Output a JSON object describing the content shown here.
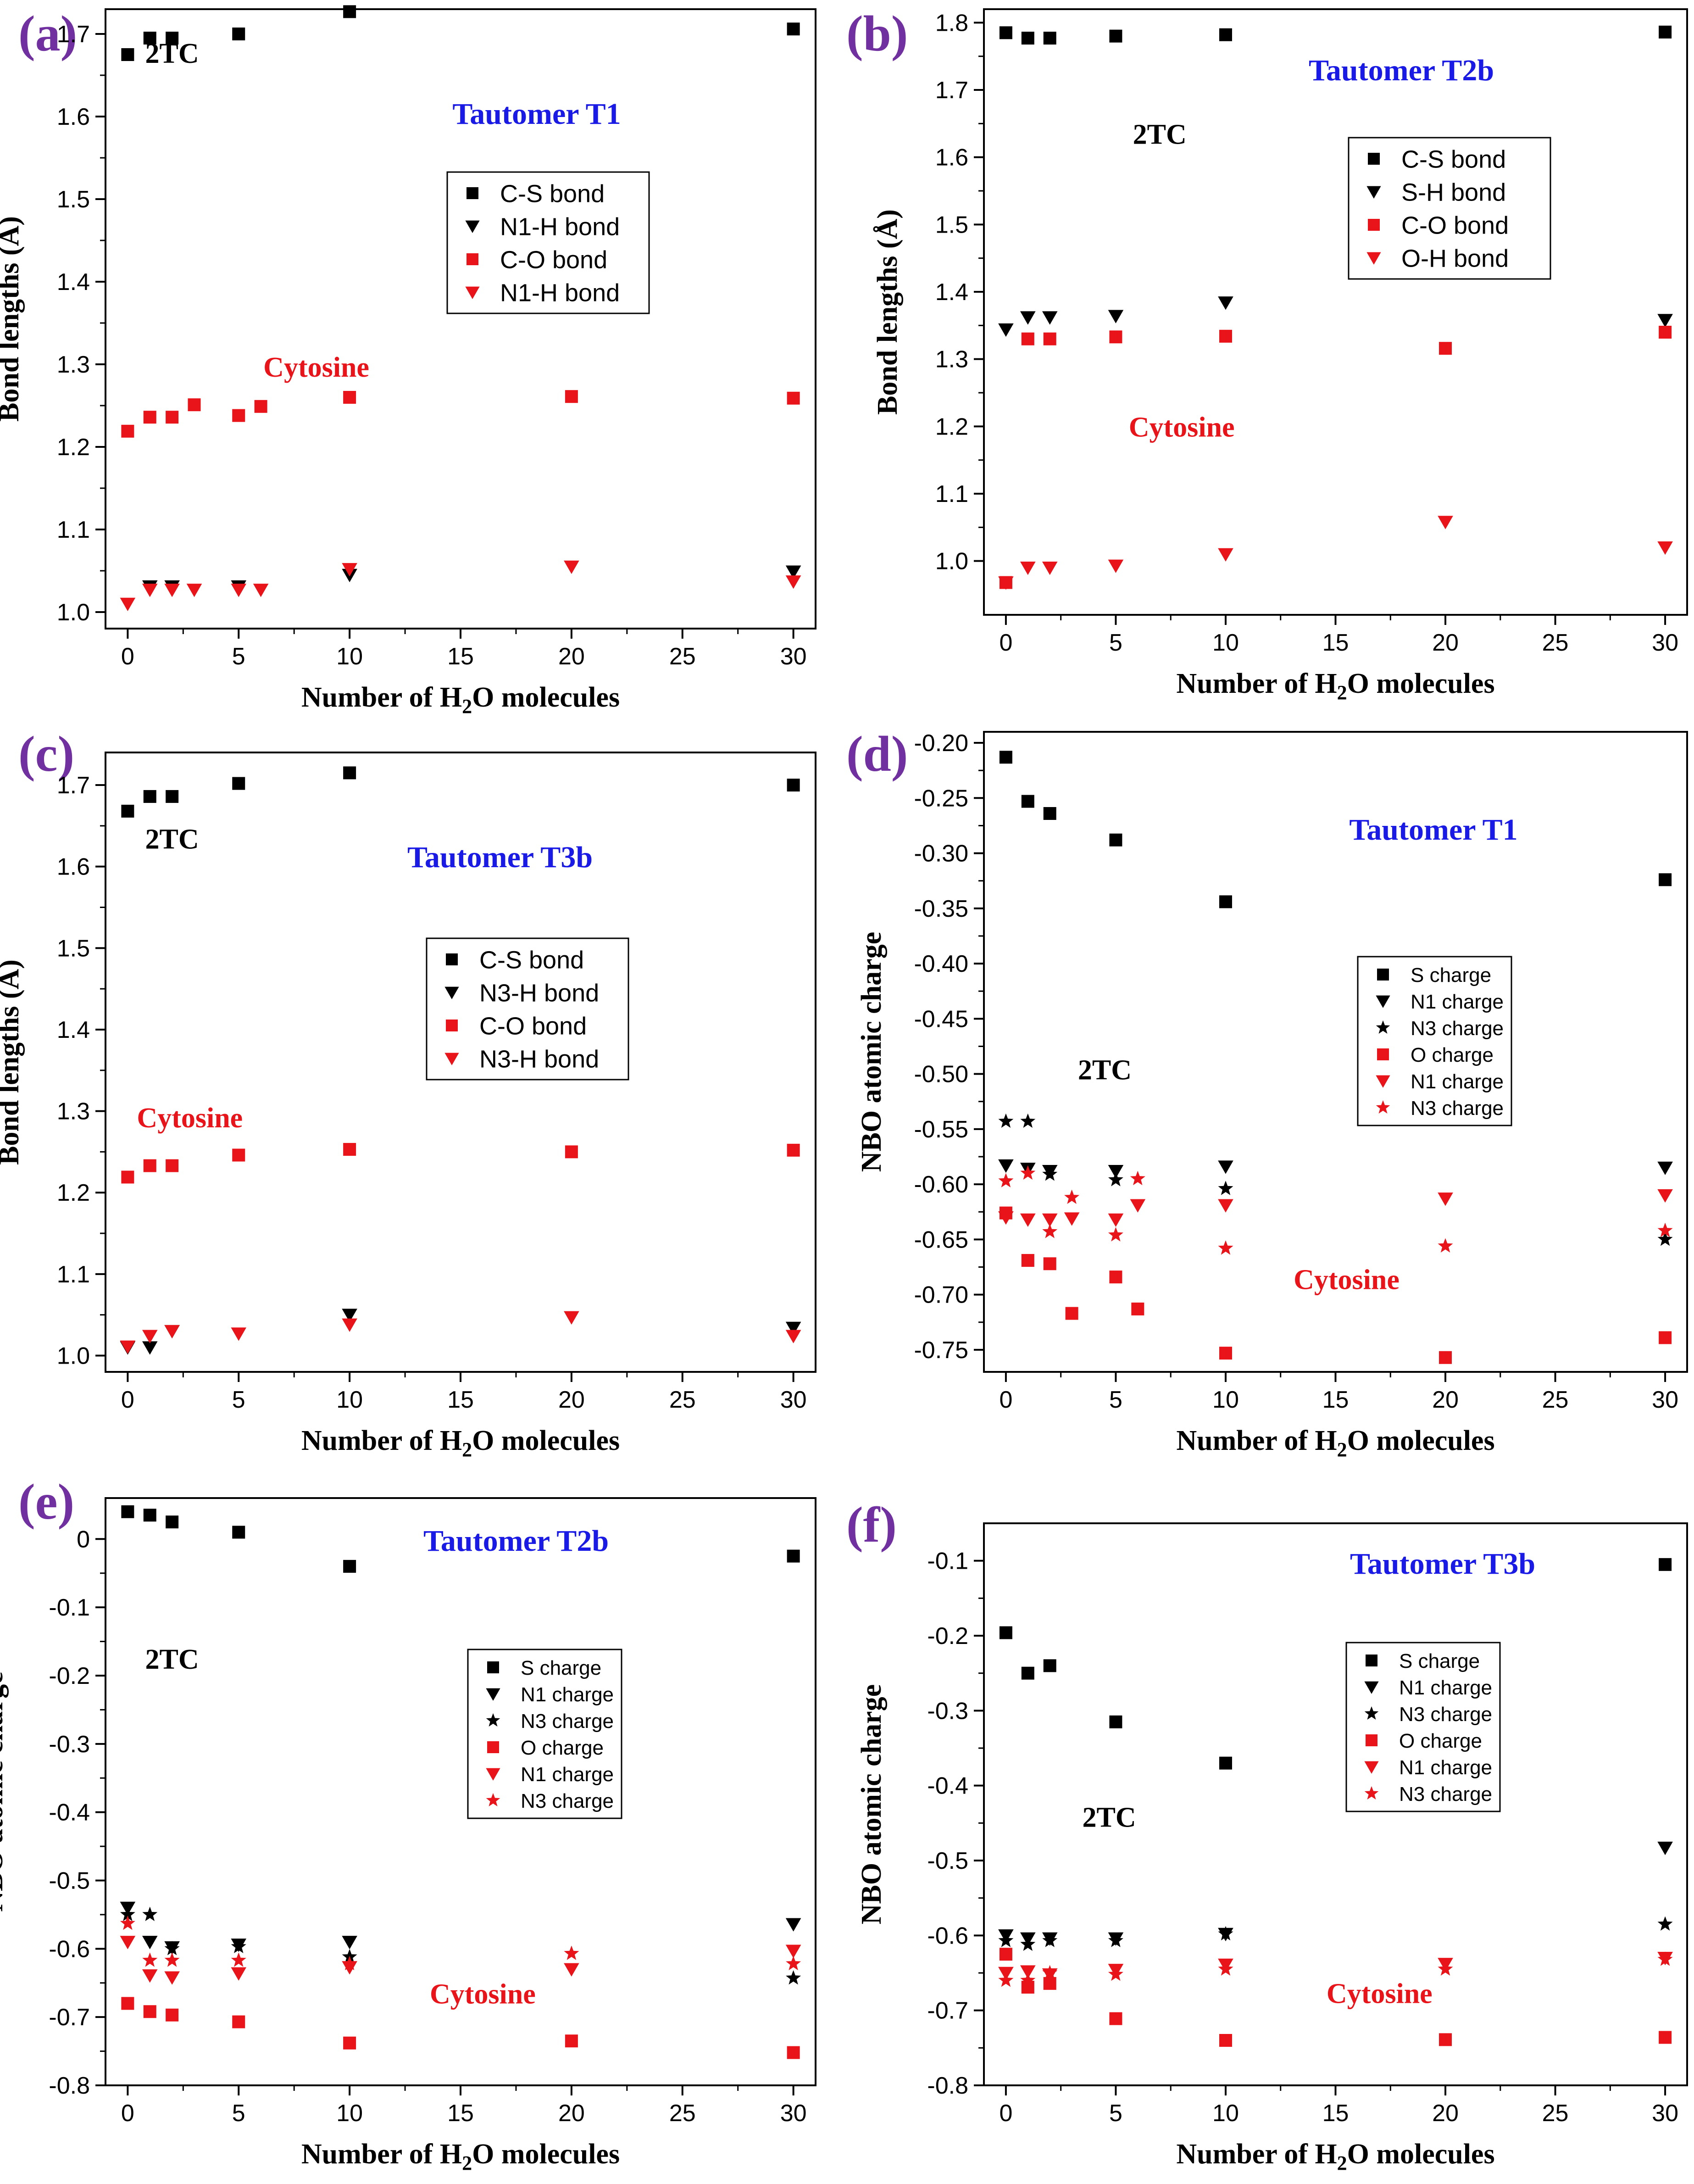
{
  "figure": {
    "panels": [
      "(a)",
      "(b)",
      "(c)",
      "(d)",
      "(e)",
      "(f)"
    ]
  },
  "colors": {
    "black": "#000000",
    "red": "#e8141a",
    "blue": "#1a1ae6",
    "purple": "#7030a0"
  },
  "chart_data": [
    {
      "type": "scatter",
      "panel_label": "(a)",
      "title": "Tautomer T1",
      "xlabel": "Number of H₂O molecules",
      "ylabel": "Bond lengths (Å)",
      "xlim": [
        -1,
        31
      ],
      "ylim": [
        0.98,
        1.73
      ],
      "xticks": [
        0,
        5,
        10,
        15,
        20,
        25,
        30
      ],
      "yticks": [
        1.0,
        1.1,
        1.2,
        1.3,
        1.4,
        1.5,
        1.6,
        1.7
      ],
      "annotations": [
        {
          "text": "2TC",
          "color": "black",
          "at": [
            2.0,
            1.665
          ]
        },
        {
          "text": "Cytosine",
          "color": "red",
          "at": [
            8.5,
            1.285
          ]
        }
      ],
      "legend_position": "center-right",
      "series": [
        {
          "name": "C-S bond",
          "marker": "square",
          "color": "black",
          "x": [
            0,
            1,
            2,
            5,
            10,
            30
          ],
          "y": [
            1.675,
            1.695,
            1.695,
            1.7,
            1.727,
            1.706
          ]
        },
        {
          "name": "N1-H bond",
          "marker": "triangle-down",
          "color": "black",
          "x": [
            1,
            2,
            5,
            10,
            30
          ],
          "y": [
            1.031,
            1.031,
            1.031,
            1.045,
            1.049
          ]
        },
        {
          "name": "C-O bond",
          "marker": "square",
          "color": "red",
          "x": [
            0,
            1,
            2,
            3,
            5,
            6,
            10,
            20,
            30
          ],
          "y": [
            1.219,
            1.236,
            1.236,
            1.251,
            1.238,
            1.249,
            1.26,
            1.261,
            1.259
          ]
        },
        {
          "name": "N1-H bond",
          "marker": "triangle-down",
          "color": "red",
          "x": [
            0,
            1,
            2,
            3,
            5,
            6,
            10,
            20,
            30
          ],
          "y": [
            1.01,
            1.027,
            1.027,
            1.027,
            1.027,
            1.027,
            1.052,
            1.055,
            1.037
          ]
        }
      ]
    },
    {
      "type": "scatter",
      "panel_label": "(b)",
      "title": "Tautomer T2b",
      "xlabel": "Number of H₂O molecules",
      "ylabel": "Bond lengths (Å)",
      "xlim": [
        -1,
        31
      ],
      "ylim": [
        0.92,
        1.82
      ],
      "xticks": [
        0,
        5,
        10,
        15,
        20,
        25,
        30
      ],
      "yticks": [
        1.0,
        1.1,
        1.2,
        1.3,
        1.4,
        1.5,
        1.6,
        1.7,
        1.8
      ],
      "annotations": [
        {
          "text": "2TC",
          "color": "black",
          "at": [
            7.0,
            1.62
          ]
        },
        {
          "text": "Cytosine",
          "color": "red",
          "at": [
            8.0,
            1.185
          ]
        }
      ],
      "legend_position": "upper-right",
      "series": [
        {
          "name": "C-S bond",
          "marker": "square",
          "color": "black",
          "x": [
            0,
            1,
            2,
            5,
            10,
            30
          ],
          "y": [
            1.785,
            1.777,
            1.777,
            1.78,
            1.782,
            1.786
          ]
        },
        {
          "name": "S-H bond",
          "marker": "triangle-down",
          "color": "black",
          "x": [
            0,
            1,
            2,
            5,
            10,
            30
          ],
          "y": [
            1.344,
            1.362,
            1.362,
            1.364,
            1.384,
            1.358
          ]
        },
        {
          "name": "C-O bond",
          "marker": "square",
          "color": "red",
          "x": [
            0,
            1,
            2,
            5,
            10,
            20,
            30
          ],
          "y": [
            0.968,
            1.33,
            1.33,
            1.333,
            1.334,
            1.316,
            1.34
          ]
        },
        {
          "name": "O-H bond",
          "marker": "triangle-down",
          "color": "red",
          "x": [
            0,
            1,
            2,
            5,
            10,
            20,
            30
          ],
          "y": [
            0.968,
            0.99,
            0.99,
            0.993,
            1.01,
            1.058,
            1.02
          ]
        }
      ]
    },
    {
      "type": "scatter",
      "panel_label": "(c)",
      "title": "Tautomer T3b",
      "xlabel": "Number of H₂O molecules",
      "ylabel": "Bond lengths (Å)",
      "xlim": [
        -1,
        31
      ],
      "ylim": [
        0.98,
        1.74
      ],
      "xticks": [
        0,
        5,
        10,
        15,
        20,
        25,
        30
      ],
      "yticks": [
        1.0,
        1.1,
        1.2,
        1.3,
        1.4,
        1.5,
        1.6,
        1.7
      ],
      "annotations": [
        {
          "text": "2TC",
          "color": "black",
          "at": [
            2.0,
            1.622
          ]
        },
        {
          "text": "Cytosine",
          "color": "red",
          "at": [
            2.8,
            1.28
          ]
        }
      ],
      "legend_position": "center-right",
      "series": [
        {
          "name": "C-S bond",
          "marker": "square",
          "color": "black",
          "x": [
            0,
            1,
            2,
            5,
            10,
            30
          ],
          "y": [
            1.668,
            1.686,
            1.686,
            1.702,
            1.715,
            1.7
          ]
        },
        {
          "name": "N3-H bond",
          "marker": "triangle-down",
          "color": "black",
          "x": [
            0,
            1,
            2,
            10,
            30
          ],
          "y": [
            1.01,
            1.01,
            1.03,
            1.05,
            1.034
          ]
        },
        {
          "name": "C-O bond",
          "marker": "square",
          "color": "red",
          "x": [
            0,
            1,
            2,
            5,
            10,
            20,
            30
          ],
          "y": [
            1.219,
            1.233,
            1.233,
            1.246,
            1.253,
            1.25,
            1.252
          ]
        },
        {
          "name": "N3-H bond",
          "marker": "triangle-down",
          "color": "red",
          "x": [
            0,
            1,
            2,
            5,
            10,
            20,
            30
          ],
          "y": [
            1.011,
            1.024,
            1.03,
            1.027,
            1.038,
            1.047,
            1.024
          ]
        }
      ]
    },
    {
      "type": "scatter",
      "panel_label": "(d)",
      "title": "Tautomer T1",
      "xlabel": "Number of H₂O molecules",
      "ylabel": "NBO atomic charge",
      "xlim": [
        -1,
        31
      ],
      "ylim": [
        -0.77,
        -0.19
      ],
      "xticks": [
        0,
        5,
        10,
        15,
        20,
        25,
        30
      ],
      "yticks": [
        -0.2,
        -0.25,
        -0.3,
        -0.35,
        -0.4,
        -0.45,
        -0.5,
        -0.55,
        -0.6,
        -0.65,
        -0.7,
        -0.75
      ],
      "ytick_labels": [
        "-0.20",
        "-0.25",
        "-0.30",
        "-0.35",
        "-0.40",
        "-0.45",
        "-0.50",
        "-0.55",
        "-0.60",
        "-0.65",
        "-0.70",
        "-0.75"
      ],
      "annotations": [
        {
          "text": "2TC",
          "color": "black",
          "at": [
            4.5,
            -0.505
          ]
        },
        {
          "text": "Cytosine",
          "color": "red",
          "at": [
            15.5,
            -0.695
          ]
        }
      ],
      "legend_position": "center-right",
      "series": [
        {
          "name": "S charge",
          "marker": "square",
          "color": "black",
          "x": [
            0,
            1,
            2,
            5,
            10,
            30
          ],
          "y": [
            -0.213,
            -0.253,
            -0.264,
            -0.288,
            -0.344,
            -0.324
          ]
        },
        {
          "name": "N1 charge",
          "marker": "triangle-down",
          "color": "black",
          "x": [
            0,
            1,
            2,
            5,
            10,
            30
          ],
          "y": [
            -0.583,
            -0.586,
            -0.588,
            -0.588,
            -0.584,
            -0.585
          ]
        },
        {
          "name": "N3 charge",
          "marker": "star",
          "color": "black",
          "x": [
            0,
            1,
            2,
            5,
            10,
            30
          ],
          "y": [
            -0.543,
            -0.543,
            -0.591,
            -0.596,
            -0.604,
            -0.65
          ]
        },
        {
          "name": "O charge",
          "marker": "square",
          "color": "red",
          "x": [
            0,
            1,
            2,
            3,
            5,
            6,
            10,
            20,
            30
          ],
          "y": [
            -0.626,
            -0.669,
            -0.672,
            -0.717,
            -0.684,
            -0.713,
            -0.753,
            -0.757,
            -0.739
          ]
        },
        {
          "name": "N1 charge",
          "marker": "triangle-down",
          "color": "red",
          "x": [
            0,
            1,
            2,
            3,
            5,
            6,
            10,
            20,
            30
          ],
          "y": [
            -0.63,
            -0.632,
            -0.632,
            -0.631,
            -0.632,
            -0.619,
            -0.619,
            -0.613,
            -0.61
          ]
        },
        {
          "name": "N3 charge",
          "marker": "star",
          "color": "red",
          "x": [
            0,
            1,
            2,
            3,
            5,
            6,
            10,
            20,
            30
          ],
          "y": [
            -0.597,
            -0.59,
            -0.643,
            -0.612,
            -0.646,
            -0.595,
            -0.658,
            -0.656,
            -0.642
          ]
        }
      ]
    },
    {
      "type": "scatter",
      "panel_label": "(e)",
      "title": "Tautomer T2b",
      "xlabel": "Number of H₂O molecules",
      "ylabel": "NBO atomic charge",
      "xlim": [
        -1,
        31
      ],
      "ylim": [
        -0.8,
        0.06
      ],
      "xticks": [
        0,
        5,
        10,
        15,
        20,
        25,
        30
      ],
      "yticks": [
        0,
        -0.1,
        -0.2,
        -0.3,
        -0.4,
        -0.5,
        -0.6,
        -0.7,
        -0.8
      ],
      "ytick_labels": [
        "0",
        "-0.1",
        "-0.2",
        "-0.3",
        "-0.4",
        "-0.5",
        "-0.6",
        "-0.7",
        "-0.8"
      ],
      "annotations": [
        {
          "text": "2TC",
          "color": "black",
          "at": [
            2.0,
            -0.19
          ]
        },
        {
          "text": "Cytosine",
          "color": "red",
          "at": [
            16.0,
            -0.68
          ]
        }
      ],
      "legend_position": "center-right",
      "series": [
        {
          "name": "S charge",
          "marker": "square",
          "color": "black",
          "x": [
            0,
            1,
            2,
            5,
            10,
            30
          ],
          "y": [
            0.04,
            0.035,
            0.025,
            0.01,
            -0.04,
            -0.025
          ]
        },
        {
          "name": "N1 charge",
          "marker": "triangle-down",
          "color": "black",
          "x": [
            0,
            1,
            2,
            5,
            10,
            30
          ],
          "y": [
            -0.54,
            -0.59,
            -0.598,
            -0.594,
            -0.59,
            -0.564
          ]
        },
        {
          "name": "N3 charge",
          "marker": "star",
          "color": "black",
          "x": [
            0,
            1,
            2,
            5,
            10,
            30
          ],
          "y": [
            -0.55,
            -0.55,
            -0.6,
            -0.597,
            -0.612,
            -0.643
          ]
        },
        {
          "name": "O charge",
          "marker": "square",
          "color": "red",
          "x": [
            0,
            1,
            2,
            5,
            10,
            20,
            30
          ],
          "y": [
            -0.68,
            -0.692,
            -0.697,
            -0.707,
            -0.738,
            -0.735,
            -0.752
          ]
        },
        {
          "name": "N1 charge",
          "marker": "triangle-down",
          "color": "red",
          "x": [
            0,
            1,
            2,
            5,
            10,
            20,
            30
          ],
          "y": [
            -0.59,
            -0.639,
            -0.642,
            -0.636,
            -0.627,
            -0.63,
            -0.603
          ]
        },
        {
          "name": "N3 charge",
          "marker": "star",
          "color": "red",
          "x": [
            0,
            1,
            2,
            5,
            10,
            20,
            30
          ],
          "y": [
            -0.563,
            -0.617,
            -0.617,
            -0.617,
            -0.622,
            -0.607,
            -0.622
          ]
        }
      ]
    },
    {
      "type": "scatter",
      "panel_label": "(f)",
      "title": "Tautomer T3b",
      "xlabel": "Number of H₂O molecules",
      "ylabel": "NBO atomic charge",
      "xlim": [
        -1,
        31
      ],
      "ylim": [
        -0.8,
        -0.05
      ],
      "xticks": [
        0,
        5,
        10,
        15,
        20,
        25,
        30
      ],
      "yticks": [
        -0.1,
        -0.2,
        -0.3,
        -0.4,
        -0.5,
        -0.6,
        -0.7,
        -0.8
      ],
      "ytick_labels": [
        "-0.1",
        "-0.2",
        "-0.3",
        "-0.4",
        "-0.5",
        "-0.6",
        "-0.7",
        "-0.8"
      ],
      "annotations": [
        {
          "text": "2TC",
          "color": "black",
          "at": [
            4.7,
            -0.455
          ]
        },
        {
          "text": "Cytosine",
          "color": "red",
          "at": [
            17.0,
            -0.69
          ]
        }
      ],
      "legend_position": "center-right",
      "series": [
        {
          "name": "S charge",
          "marker": "square",
          "color": "black",
          "x": [
            0,
            1,
            2,
            5,
            10,
            30
          ],
          "y": [
            -0.196,
            -0.25,
            -0.24,
            -0.315,
            -0.37,
            -0.105
          ]
        },
        {
          "name": "N1 charge",
          "marker": "triangle-down",
          "color": "black",
          "x": [
            0,
            1,
            2,
            5,
            10,
            30
          ],
          "y": [
            -0.6,
            -0.604,
            -0.604,
            -0.604,
            -0.598,
            -0.483
          ]
        },
        {
          "name": "N3 charge",
          "marker": "star",
          "color": "black",
          "x": [
            0,
            1,
            2,
            5,
            10,
            30
          ],
          "y": [
            -0.607,
            -0.612,
            -0.607,
            -0.607,
            -0.598,
            -0.585
          ]
        },
        {
          "name": "O charge",
          "marker": "square",
          "color": "red",
          "x": [
            0,
            1,
            2,
            5,
            10,
            20,
            30
          ],
          "y": [
            -0.625,
            -0.669,
            -0.664,
            -0.711,
            -0.74,
            -0.739,
            -0.736
          ]
        },
        {
          "name": "N1 charge",
          "marker": "triangle-down",
          "color": "red",
          "x": [
            0,
            1,
            2,
            5,
            10,
            20,
            30
          ],
          "y": [
            -0.65,
            -0.648,
            -0.652,
            -0.646,
            -0.639,
            -0.638,
            -0.63
          ]
        },
        {
          "name": "N3 charge",
          "marker": "star",
          "color": "red",
          "x": [
            0,
            1,
            2,
            5,
            10,
            20,
            30
          ],
          "y": [
            -0.66,
            -0.66,
            -0.65,
            -0.652,
            -0.645,
            -0.645,
            -0.632
          ]
        }
      ]
    }
  ]
}
